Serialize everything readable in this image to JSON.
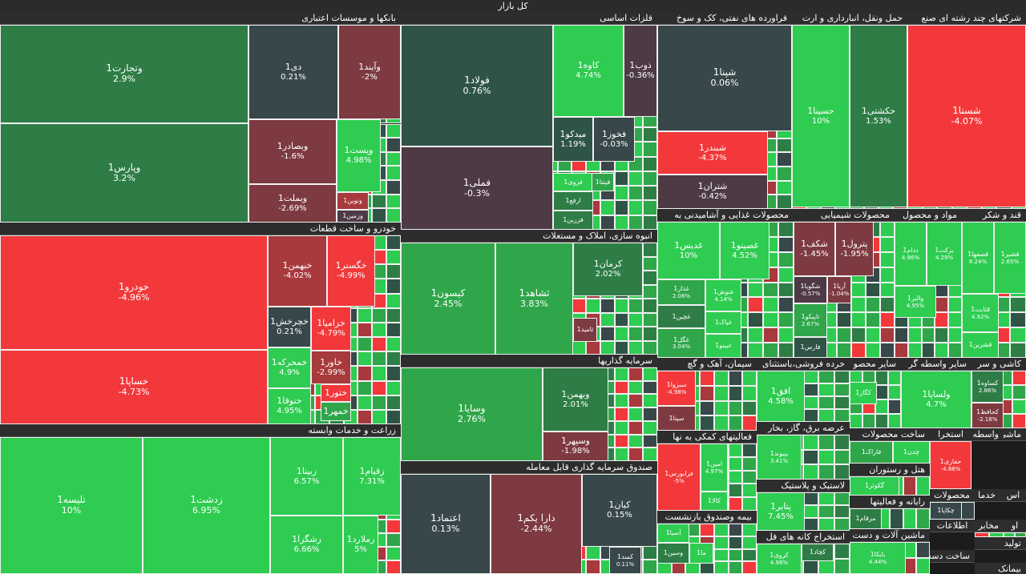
{
  "title": "کل بازار",
  "sectors": [
    {
      "name": "بانکها و موسسات اعتباری",
      "tiles": [
        {
          "n": "وتجارت1",
          "p": "2.9%",
          "c": "g1",
          "lg": true
        },
        {
          "n": "وپارس1",
          "p": "3.2%",
          "c": "g1",
          "lg": true
        },
        {
          "n": "دی1",
          "p": "0.21%",
          "c": "n0"
        },
        {
          "n": "وآیند1",
          "p": "-2%",
          "c": "r1"
        },
        {
          "n": "وبصادر1",
          "p": "-1.6%",
          "c": "r1"
        },
        {
          "n": "وپست1",
          "p": "4.98%",
          "c": "g3"
        },
        {
          "n": "وبملت1",
          "p": "-2.69%",
          "c": "r1"
        },
        {
          "n": "ونوین1",
          "p": "",
          "c": "r2",
          "sm": true
        },
        {
          "n": "وزمین1",
          "p": "",
          "c": "r0",
          "sm": true
        }
      ]
    },
    {
      "name": "فلزات اساسی",
      "tiles": [
        {
          "n": "فولاد1",
          "p": "0.76%",
          "c": "g0",
          "lg": true
        },
        {
          "n": "فملی1",
          "p": "-0.3%",
          "c": "r0",
          "lg": true
        },
        {
          "n": "کاوه1",
          "p": "4.74%",
          "c": "g3"
        },
        {
          "n": "ذوب1",
          "p": "-0.36%",
          "c": "r0"
        },
        {
          "n": "میدکو1",
          "p": "1.19%",
          "c": "g0"
        },
        {
          "n": "فخوز1",
          "p": "-0.03%",
          "c": "n0"
        },
        {
          "n": "فروی1",
          "p": "",
          "c": "g3",
          "sm": true
        },
        {
          "n": "فپنتا1",
          "p": "",
          "c": "g2",
          "sm": true
        },
        {
          "n": "ارفع1",
          "p": "",
          "c": "g1",
          "sm": true
        },
        {
          "n": "فزرین1",
          "p": "",
          "c": "g1",
          "sm": true
        }
      ]
    },
    {
      "name": "فراورده های نفتی، کک و سوخ",
      "tiles": [
        {
          "n": "شپنا1",
          "p": "0.06%",
          "c": "n0",
          "lg": true
        },
        {
          "n": "شبندر1",
          "p": "-4.37%",
          "c": "r3"
        },
        {
          "n": "شتران1",
          "p": "-0.42%",
          "c": "r0"
        }
      ]
    },
    {
      "name": "حمل ونقل، انبارداری و ارت",
      "tiles": [
        {
          "n": "حسینا1",
          "p": "10%",
          "c": "g3"
        },
        {
          "n": "حکشتی1",
          "p": "1.53%",
          "c": "g1"
        }
      ]
    },
    {
      "name": "شرکتهای چند رشته ای صنع",
      "tiles": [
        {
          "n": "شستا1",
          "p": "-4.07%",
          "c": "r3",
          "lg": true
        }
      ]
    },
    {
      "name": "خودرو و ساخت قطعات",
      "tiles": [
        {
          "n": "خودرو1",
          "p": "-4.96%",
          "c": "r3",
          "lg": true
        },
        {
          "n": "خساپا1",
          "p": "-4.73%",
          "c": "r3",
          "lg": true
        },
        {
          "n": "خبهمن1",
          "p": "-4.02%",
          "c": "r2"
        },
        {
          "n": "خگستر1",
          "p": "-4.99%",
          "c": "r3"
        },
        {
          "n": "خچرخش1",
          "p": "0.21%",
          "c": "n0"
        },
        {
          "n": "خزامیا1",
          "p": "-4.79%",
          "c": "r3"
        },
        {
          "n": "خمحرکه1",
          "p": "4.9%",
          "c": "g3"
        },
        {
          "n": "خاور1",
          "p": "-2.99%",
          "c": "r2"
        },
        {
          "n": "ختوقا1",
          "p": "4.95%",
          "c": "g3"
        },
        {
          "n": "ختور1",
          "p": "",
          "c": "r3"
        },
        {
          "n": "خمهر1",
          "p": "",
          "c": "g2"
        }
      ]
    },
    {
      "name": "زراعت و خدمات وابسته",
      "tiles": [
        {
          "n": "تلیسه1",
          "p": "10%",
          "c": "g3",
          "lg": true
        },
        {
          "n": "زدشت1",
          "p": "6.95%",
          "c": "g3",
          "lg": true
        },
        {
          "n": "زبینا1",
          "p": "6.57%",
          "c": "g3"
        },
        {
          "n": "زقیام1",
          "p": "7.31%",
          "c": "g3"
        },
        {
          "n": "زشگزا1",
          "p": "6.66%",
          "c": "g3"
        },
        {
          "n": "زملارد1",
          "p": "5%",
          "c": "g3"
        }
      ]
    },
    {
      "name": "انبوه سازی، املاک و مستغلات",
      "tiles": [
        {
          "n": "کیسون1",
          "p": "2.45%",
          "c": "g2",
          "lg": true
        },
        {
          "n": "ثشاهد1",
          "p": "3.83%",
          "c": "g2",
          "lg": true
        },
        {
          "n": "کرمان1",
          "p": "2.02%",
          "c": "g1"
        },
        {
          "n": "ثامید1",
          "p": "",
          "c": "r1",
          "sm": true
        }
      ]
    },
    {
      "name": "سرمایه گذاریها",
      "tiles": [
        {
          "n": "وسایا1",
          "p": "2.76%",
          "c": "g2",
          "lg": true
        },
        {
          "n": "وبهمن1",
          "p": "2.01%",
          "c": "g1"
        },
        {
          "n": "وسپهر1",
          "p": "-1.98%",
          "c": "r1"
        }
      ]
    },
    {
      "name": "صندوق سرمایه گذاری قابل معامله",
      "tiles": [
        {
          "n": "اعتماد1",
          "p": "0.13%",
          "c": "n0",
          "lg": true
        },
        {
          "n": "دارا یکم1",
          "p": "-2.44%",
          "c": "r1",
          "lg": true
        },
        {
          "n": "کیان1",
          "p": "0.15%",
          "c": "n0"
        },
        {
          "n": "کمند1",
          "p": "0.11%",
          "c": "n0",
          "sm": true
        }
      ]
    },
    {
      "name": "محصولات غذایی و آشامیدنی به",
      "tiles": [
        {
          "n": "غدیس1",
          "p": "10%",
          "c": "g3"
        },
        {
          "n": "غصینو1",
          "p": "4.52%",
          "c": "g3"
        },
        {
          "n": "غذار1",
          "p": "2.08%",
          "c": "g2",
          "sm": true
        },
        {
          "n": "غنوش1",
          "p": "4.14%",
          "c": "g3",
          "sm": true
        },
        {
          "n": "غچین1",
          "p": "",
          "c": "g1",
          "sm": true
        },
        {
          "n": "غپاک1",
          "p": "",
          "c": "g3",
          "sm": true
        },
        {
          "n": "غگل1",
          "p": "3.04%",
          "c": "g2",
          "sm": true
        },
        {
          "n": "غبینو1",
          "p": "",
          "c": "g3",
          "sm": true
        }
      ]
    },
    {
      "name": "محصولات شیمیایی",
      "tiles": [
        {
          "n": "شکف1",
          "p": "-1.45%",
          "c": "r1"
        },
        {
          "n": "پترول1",
          "p": "-1.95%",
          "c": "r1"
        },
        {
          "n": "شگویا1",
          "p": "-0.57%",
          "c": "r0",
          "sm": true
        },
        {
          "n": "آریا1",
          "p": "-1.04%",
          "c": "r1",
          "sm": true
        },
        {
          "n": "تاپیکو1",
          "p": "2.67%",
          "c": "g2",
          "sm": true
        },
        {
          "n": "فارس1",
          "p": "",
          "c": "g0",
          "sm": true
        }
      ]
    },
    {
      "name": "مواد و محصول",
      "tiles": [
        {
          "n": "ددام1",
          "p": "4.96%",
          "c": "g3",
          "sm": true
        },
        {
          "n": "برکت1",
          "p": "4.29%",
          "c": "g3",
          "sm": true
        },
        {
          "n": "والبر1",
          "p": "4.95%",
          "c": "g3",
          "sm": true
        }
      ]
    },
    {
      "name": "قند و شکر",
      "tiles": [
        {
          "n": "قصفها1",
          "p": "8.24%",
          "c": "g3",
          "sm": true
        },
        {
          "n": "قشیر1",
          "p": "2.65%",
          "c": "g3",
          "sm": true
        },
        {
          "n": "قثابت1",
          "p": "4.92%",
          "c": "g3",
          "sm": true
        },
        {
          "n": "قشرین1",
          "p": "",
          "c": "g3",
          "sm": true
        }
      ]
    },
    {
      "name": "سیمان، آهک و گچ",
      "tiles": [
        {
          "n": "سبزوا1",
          "p": "-4.98%",
          "c": "r3",
          "sm": true
        },
        {
          "n": "سپنا1",
          "p": "",
          "c": "r1",
          "sm": true
        }
      ]
    },
    {
      "name": "خرده فروشی،باستثنای",
      "tiles": [
        {
          "n": "افق1",
          "p": "4.58%",
          "c": "g3"
        }
      ]
    },
    {
      "name": "سایر محصو",
      "tiles": [
        {
          "n": "کگاز1",
          "p": "",
          "c": "g3",
          "sm": true
        }
      ]
    },
    {
      "name": "سایر واسطه گر",
      "tiles": [
        {
          "n": "ولساپا1",
          "p": "4.7%",
          "c": "g3"
        }
      ]
    },
    {
      "name": "کاشی و سر",
      "tiles": [
        {
          "n": "کساوه1",
          "p": "2.86%",
          "c": "g1",
          "sm": true
        },
        {
          "n": "کحافظ1",
          "p": "-2.18%",
          "c": "r1",
          "sm": true
        }
      ]
    },
    {
      "name": "عرضه برق، گاز، بخار",
      "tiles": [
        {
          "n": "بپیوند1",
          "p": "3.41%",
          "c": "g3",
          "sm": true
        }
      ]
    },
    {
      "name": "فعالیتهای کمکی به نها",
      "tiles": [
        {
          "n": "فرابورس1",
          "p": "-5%",
          "c": "r3",
          "sm": true
        },
        {
          "n": "امین1",
          "p": "4.97%",
          "c": "g3",
          "sm": true
        },
        {
          "n": "کالا1",
          "p": "",
          "c": "g3",
          "sm": true
        }
      ]
    },
    {
      "name": "لاستیک و پلاستیک",
      "tiles": [
        {
          "n": "پتایر1",
          "p": "7.45%",
          "c": "g3"
        }
      ]
    },
    {
      "name": "بیمه وصندوق بازنشست",
      "tiles": [
        {
          "n": "آسیا1",
          "p": "",
          "c": "g3",
          "sm": true
        },
        {
          "n": "وسین1",
          "p": "",
          "c": "g1",
          "sm": true
        },
        {
          "n": "ما1",
          "p": "",
          "c": "g3",
          "sm": true
        }
      ]
    },
    {
      "name": "استخراج کانه های فل",
      "tiles": [
        {
          "n": "کروی1",
          "p": "4.98%",
          "c": "g3",
          "sm": true
        },
        {
          "n": "کچاد1",
          "p": "",
          "c": "g1",
          "sm": true
        }
      ]
    },
    {
      "name": "ساخت محصولات",
      "tiles": [
        {
          "n": "فاراک1",
          "p": "",
          "c": "g2",
          "sm": true
        },
        {
          "n": "چدن1",
          "p": "",
          "c": "g3",
          "sm": true
        }
      ]
    },
    {
      "name": "استخرا",
      "tiles": [
        {
          "n": "حفاری1",
          "p": "-4.88%",
          "c": "r3",
          "sm": true
        }
      ]
    },
    {
      "name": "واسطه",
      "tiles": []
    },
    {
      "name": "ماشی",
      "tiles": []
    },
    {
      "name": "هتل و رستوران",
      "tiles": [
        {
          "n": "گکوثر1",
          "p": "",
          "c": "g3",
          "sm": true
        }
      ]
    },
    {
      "name": "رایانه و فعالیتها",
      "tiles": [
        {
          "n": "مرقام1",
          "p": "",
          "c": "g1",
          "sm": true
        }
      ]
    },
    {
      "name": "ماشین آلات و دست",
      "tiles": [
        {
          "n": "بایکا1",
          "p": "4.44%",
          "c": "g3",
          "sm": true
        }
      ]
    },
    {
      "name": "محصولات",
      "tiles": [
        {
          "n": "چکاپا1",
          "p": "",
          "c": "n0",
          "sm": true
        }
      ]
    },
    {
      "name": "خدما",
      "tiles": []
    },
    {
      "name": "اس",
      "tiles": []
    },
    {
      "name": "اطلاعات",
      "tiles": []
    },
    {
      "name": "مخابر",
      "tiles": []
    },
    {
      "name": "او",
      "tiles": []
    },
    {
      "name": "تولید",
      "tiles": []
    },
    {
      "name": "ساخت دست",
      "tiles": []
    },
    {
      "name": "بیمانک",
      "tiles": []
    }
  ]
}
